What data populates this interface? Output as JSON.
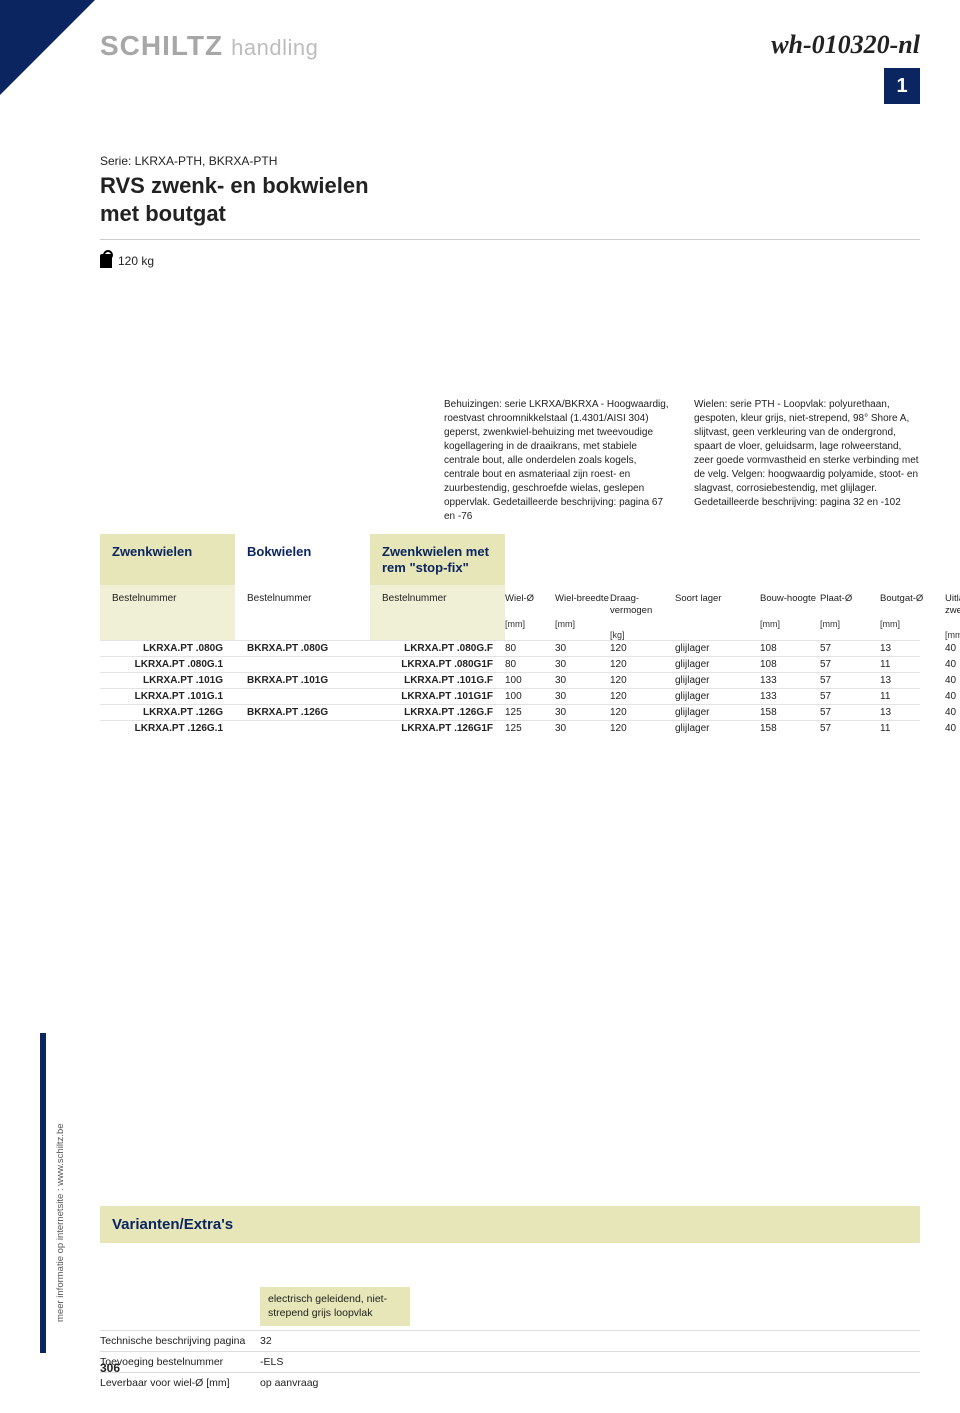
{
  "colors": {
    "brand_blue": "#0b2560",
    "tab_on_bg": "#e6e6b8",
    "tab_on_bg_light": "#f0f0d6",
    "logo_grey": "#a7a7a7",
    "logo_sub_grey": "#bdbdbd"
  },
  "header": {
    "logo_main": "SCHILTZ",
    "logo_sub": "handling",
    "doc_id": "wh-010320-nl",
    "page_badge": "1"
  },
  "title": {
    "serie": "Serie: LKRXA-PTH, BKRXA-PTH",
    "main_line1": "RVS zwenk- en bokwielen",
    "main_line2": "met boutgat",
    "weight": "120 kg"
  },
  "descriptions": {
    "left": "Behuizingen: serie LKRXA/BKRXA - Hoogwaardig, roestvast chroomnikkelstaal (1.4301/AISI 304) geperst, zwenkwiel-behuizing met tweevoudige kogellagering in de draaikrans, met stabiele centrale bout, alle onderdelen zoals kogels, centrale bout en asmateriaal zijn roest- en zuurbestendig, geschroefde wielas, geslepen oppervlak. Gedetailleerde beschrijving: pagina 67 en -76",
    "right": "Wielen: serie PTH - Loopvlak: polyurethaan, gespoten, kleur grijs, niet-strepend, 98° Shore A, slijtvast, geen verkleuring van de ondergrond, spaart de vloer, geluidsarm, lage rolweerstand, zeer goede vormvastheid en sterke verbinding met de velg. Velgen: hoogwaardig polyamide, stoot- en slagvast, corrosiebestendig, met glijlager. Gedetailleerde beschrijving: pagina 32 en -102"
  },
  "category_tabs": {
    "a": "Zwenkwielen",
    "b": "Bokwielen",
    "c": "Zwenkwielen met rem \"stop-fix\""
  },
  "order_header_label": "Bestelnummer",
  "spec_headers": [
    {
      "name": "Wiel-Ø",
      "unit": "[mm]"
    },
    {
      "name": "Wiel-breedte",
      "unit": "[mm]"
    },
    {
      "name": "Draag-vermogen",
      "unit": "[kg]"
    },
    {
      "name": "Soort lager",
      "unit": ""
    },
    {
      "name": "Bouw-hoogte",
      "unit": "[mm]"
    },
    {
      "name": "Plaat-Ø",
      "unit": "[mm]"
    },
    {
      "name": "Boutgat-Ø",
      "unit": "[mm]"
    },
    {
      "name": "Uitlading zwenkwiel",
      "unit": "[mm]"
    }
  ],
  "rows": [
    {
      "a": "LKRXA.PT .080G",
      "b": "BKRXA.PT .080G",
      "c": "LKRXA.PT .080G.F",
      "v": [
        "80",
        "30",
        "120",
        "glijlager",
        "108",
        "57",
        "13",
        "40"
      ]
    },
    {
      "a": "LKRXA.PT .080G.1",
      "b": "",
      "c": "LKRXA.PT .080G1F",
      "v": [
        "80",
        "30",
        "120",
        "glijlager",
        "108",
        "57",
        "11",
        "40"
      ]
    },
    {
      "a": "LKRXA.PT .101G",
      "b": "BKRXA.PT .101G",
      "c": "LKRXA.PT .101G.F",
      "v": [
        "100",
        "30",
        "120",
        "glijlager",
        "133",
        "57",
        "13",
        "40"
      ]
    },
    {
      "a": "LKRXA.PT .101G.1",
      "b": "",
      "c": "LKRXA.PT .101G1F",
      "v": [
        "100",
        "30",
        "120",
        "glijlager",
        "133",
        "57",
        "11",
        "40"
      ]
    },
    {
      "a": "LKRXA.PT .126G",
      "b": "BKRXA.PT .126G",
      "c": "LKRXA.PT .126G.F",
      "v": [
        "125",
        "30",
        "120",
        "glijlager",
        "158",
        "57",
        "13",
        "40"
      ]
    },
    {
      "a": "LKRXA.PT .126G.1",
      "b": "",
      "c": "LKRXA.PT .126G1F",
      "v": [
        "125",
        "30",
        "120",
        "glijlager",
        "158",
        "57",
        "11",
        "40"
      ]
    }
  ],
  "variants": {
    "title": "Varianten/Extra's",
    "option_head": "electrisch geleidend, niet-strepend grijs loopvlak",
    "rows": [
      {
        "label": "Technische beschrijving pagina",
        "val": "32"
      },
      {
        "label": "Toevoeging bestelnummer",
        "val": "-ELS"
      },
      {
        "label": "Leverbaar voor wiel-Ø [mm]",
        "val": "op aanvraag"
      }
    ]
  },
  "footer": {
    "side_text": "meer informatie op internetsite : www.schiltz.be",
    "page_number": "306"
  }
}
